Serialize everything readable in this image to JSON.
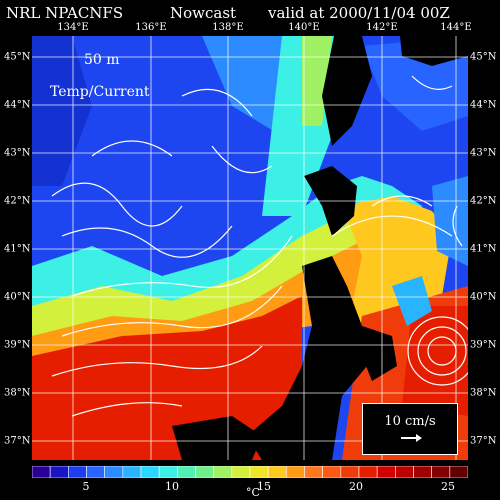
{
  "header": {
    "left": "NRL NPACNFS",
    "middle": "Nowcast",
    "right": "valid at 2000/11/04 00Z"
  },
  "panel": {
    "depth": "50 m",
    "variable": "Temp/Current"
  },
  "lon_labels": [
    "134°E",
    "136°E",
    "138°E",
    "140°E",
    "142°E",
    "144°E"
  ],
  "lat_labels": [
    "45°N",
    "44°N",
    "43°N",
    "42°N",
    "41°N",
    "40°N",
    "39°N",
    "38°N",
    "37°N"
  ],
  "scale": {
    "label": "10 cm/s"
  },
  "colorbar": {
    "ticks": [
      "5",
      "10",
      "15",
      "20",
      "25"
    ],
    "unit": "°C",
    "colors": [
      "#2a0096",
      "#1a14c8",
      "#1e3cf0",
      "#2864ff",
      "#2c8cff",
      "#28b4ff",
      "#28d8ff",
      "#3cf0e6",
      "#50f0b4",
      "#6ef08c",
      "#a0f064",
      "#d2f03c",
      "#f0e628",
      "#ffc81e",
      "#ff9c14",
      "#ff781e",
      "#ff5a14",
      "#f03c0a",
      "#e61e00",
      "#d20000",
      "#be0000",
      "#a00000",
      "#820000",
      "#640000"
    ]
  },
  "map_colors": {
    "land": "#000000",
    "grid": "#ffffff"
  }
}
